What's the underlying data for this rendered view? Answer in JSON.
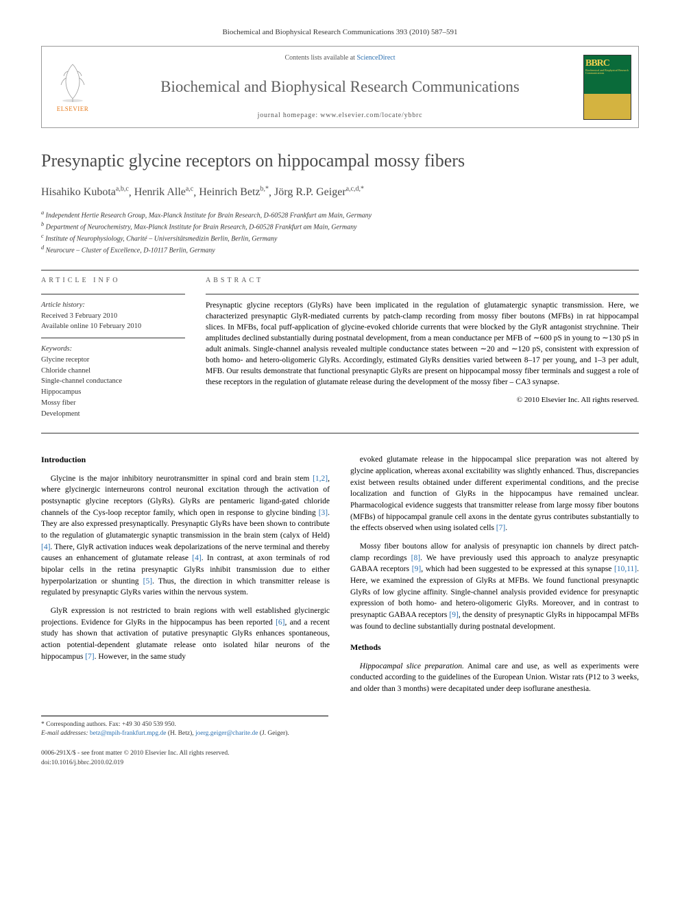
{
  "running_header": "Biochemical and Biophysical Research Communications 393 (2010) 587–591",
  "banner": {
    "contents_prefix": "Contents lists available at ",
    "contents_link": "ScienceDirect",
    "journal_name": "Biochemical and Biophysical Research Communications",
    "homepage_prefix": "journal homepage: ",
    "homepage_url": "www.elsevier.com/locate/ybbrc",
    "publisher_name": "ELSEVIER",
    "cover_abbr": "BBRC",
    "cover_sub": "Biochemical and Biophysical Research Communications"
  },
  "title": "Presynaptic glycine receptors on hippocampal mossy fibers",
  "authors_html": "Hisahiko Kubota",
  "author_list": [
    {
      "name": "Hisahiko Kubota",
      "marks": "a,b,c"
    },
    {
      "name": "Henrik Alle",
      "marks": "a,c"
    },
    {
      "name": "Heinrich Betz",
      "marks": "b,*"
    },
    {
      "name": "Jörg R.P. Geiger",
      "marks": "a,c,d,*"
    }
  ],
  "affiliations": [
    "a Independent Hertie Research Group, Max-Planck Institute for Brain Research, D-60528 Frankfurt am Main, Germany",
    "b Department of Neurochemistry, Max-Planck Institute for Brain Research, D-60528 Frankfurt am Main, Germany",
    "c Institute of Neurophysiology, Charité – Universitätsmedizin Berlin, Berlin, Germany",
    "d Neurocure – Cluster of Excellence, D-10117 Berlin, Germany"
  ],
  "article_info": {
    "heading": "ARTICLE INFO",
    "history_label": "Article history:",
    "received": "Received 3 February 2010",
    "available": "Available online 10 February 2010",
    "keywords_label": "Keywords:",
    "keywords": [
      "Glycine receptor",
      "Chloride channel",
      "Single-channel conductance",
      "Hippocampus",
      "Mossy fiber",
      "Development"
    ]
  },
  "abstract": {
    "heading": "ABSTRACT",
    "text": "Presynaptic glycine receptors (GlyRs) have been implicated in the regulation of glutamatergic synaptic transmission. Here, we characterized presynaptic GlyR-mediated currents by patch-clamp recording from mossy fiber boutons (MFBs) in rat hippocampal slices. In MFBs, focal puff-application of glycine-evoked chloride currents that were blocked by the GlyR antagonist strychnine. Their amplitudes declined substantially during postnatal development, from a mean conductance per MFB of ∼600 pS in young to ∼130 pS in adult animals. Single-channel analysis revealed multiple conductance states between ∼20 and ∼120 pS, consistent with expression of both homo- and hetero-oligomeric GlyRs. Accordingly, estimated GlyRs densities varied between 8–17 per young, and 1–3 per adult, MFB. Our results demonstrate that functional presynaptic GlyRs are present on hippocampal mossy fiber terminals and suggest a role of these receptors in the regulation of glutamate release during the development of the mossy fiber – CA3 synapse.",
    "copyright": "© 2010 Elsevier Inc. All rights reserved."
  },
  "intro_heading": "Introduction",
  "body_left": [
    "Glycine is the major inhibitory neurotransmitter in spinal cord and brain stem [1,2], where glycinergic interneurons control neuronal excitation through the activation of postsynaptic glycine receptors (GlyRs). GlyRs are pentameric ligand-gated chloride channels of the Cys-loop receptor family, which open in response to glycine binding [3]. They are also expressed presynaptically. Presynaptic GlyRs have been shown to contribute to the regulation of glutamatergic synaptic transmission in the brain stem (calyx of Held) [4]. There, GlyR activation induces weak depolarizations of the nerve terminal and thereby causes an enhancement of glutamate release [4]. In contrast, at axon terminals of rod bipolar cells in the retina presynaptic GlyRs inhibit transmission due to either hyperpolarization or shunting [5]. Thus, the direction in which transmitter release is regulated by presynaptic GlyRs varies within the nervous system.",
    "GlyR expression is not restricted to brain regions with well established glycinergic projections. Evidence for GlyRs in the hippocampus has been reported [6], and a recent study has shown that activation of putative presynaptic GlyRs enhances spontaneous, action potential-dependent glutamate release onto isolated hilar neurons of the hippocampus [7]. However, in the same study"
  ],
  "body_right": [
    "evoked glutamate release in the hippocampal slice preparation was not altered by glycine application, whereas axonal excitability was slightly enhanced. Thus, discrepancies exist between results obtained under different experimental conditions, and the precise localization and function of GlyRs in the hippocampus have remained unclear. Pharmacological evidence suggests that transmitter release from large mossy fiber boutons (MFBs) of hippocampal granule cell axons in the dentate gyrus contributes substantially to the effects observed when using isolated cells [7].",
    "Mossy fiber boutons allow for analysis of presynaptic ion channels by direct patch-clamp recordings [8]. We have previously used this approach to analyze presynaptic GABAA receptors [9], which had been suggested to be expressed at this synapse [10,11]. Here, we examined the expression of GlyRs at MFBs. We found functional presynaptic GlyRs of low glycine affinity. Single-channel analysis provided evidence for presynaptic expression of both homo- and hetero-oligomeric GlyRs. Moreover, and in contrast to presynaptic GABAA receptors [9], the density of presynaptic GlyRs in hippocampal MFBs was found to decline substantially during postnatal development."
  ],
  "methods_heading": "Methods",
  "methods_text": "Hippocampal slice preparation. Animal care and use, as well as experiments were conducted according to the guidelines of the European Union. Wistar rats (P12 to 3 weeks, and older than 3 months) were decapitated under deep isoflurane anesthesia.",
  "footnotes": {
    "corr": "* Corresponding authors. Fax: +49 30 450 539 950.",
    "email_label": "E-mail addresses: ",
    "email1": "betz@mpih-frankfurt.mpg.de",
    "email1_name": " (H. Betz), ",
    "email2": "joerg.geiger@charite.de",
    "email2_name": " (J. Geiger)."
  },
  "bottom": {
    "issn": "0006-291X/$ - see front matter © 2010 Elsevier Inc. All rights reserved.",
    "doi": "doi:10.1016/j.bbrc.2010.02.019"
  }
}
